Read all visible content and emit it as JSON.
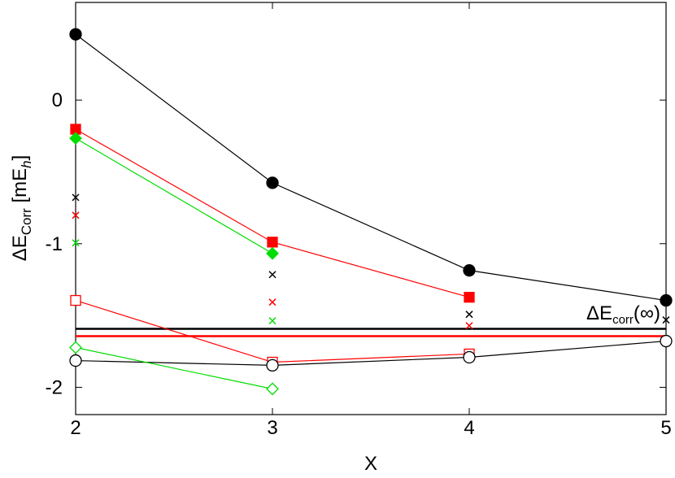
{
  "chart_data": {
    "type": "line",
    "xlabel": "X",
    "ylabel": {
      "main": "ΔE",
      "sub": "Corr",
      "rest": " [mE",
      "sub2": "h",
      "end": "]"
    },
    "annotation": {
      "main": "ΔE",
      "sub": "corr",
      "rest": "(∞)"
    },
    "xlim": [
      2,
      5
    ],
    "xticks": [
      2,
      3,
      4,
      5
    ],
    "ylim": [
      -2.19,
      0.68
    ],
    "yticks": [
      -2,
      -1,
      0
    ],
    "hlines": [
      {
        "value": -1.593,
        "color": "#000000"
      },
      {
        "value": -1.644,
        "color": "#ff0000"
      }
    ],
    "series": [
      {
        "color": "#000000",
        "marker": "circle",
        "filled": true,
        "line": true,
        "x": [
          2,
          3,
          4,
          5
        ],
        "values": [
          0.458,
          -0.576,
          -1.186,
          -1.395
        ]
      },
      {
        "color": "#ff0000",
        "marker": "square",
        "filled": true,
        "line": true,
        "x": [
          2,
          3,
          4
        ],
        "values": [
          -0.203,
          -0.989,
          -1.373
        ]
      },
      {
        "color": "#00dd00",
        "marker": "diamond",
        "filled": true,
        "line": true,
        "x": [
          2,
          3
        ],
        "values": [
          -0.266,
          -1.068
        ]
      },
      {
        "color": "#ff0000",
        "marker": "square",
        "filled": false,
        "line": true,
        "x": [
          2,
          3,
          4
        ],
        "values": [
          -1.395,
          -1.825,
          -1.768
        ]
      },
      {
        "color": "#000000",
        "marker": "circle",
        "filled": false,
        "line": true,
        "x": [
          2,
          3,
          4,
          5
        ],
        "values": [
          -1.814,
          -1.847,
          -1.791,
          -1.678
        ]
      },
      {
        "color": "#00dd00",
        "marker": "diamond",
        "filled": false,
        "line": true,
        "x": [
          2,
          3
        ],
        "values": [
          -1.723,
          -2.011
        ]
      },
      {
        "color": "#000000",
        "marker": "cross",
        "filled": false,
        "line": false,
        "x": [
          2,
          3,
          4,
          5
        ],
        "values": [
          -0.678,
          -1.215,
          -1.492,
          -1.531
        ]
      },
      {
        "color": "#ff0000",
        "marker": "cross",
        "filled": false,
        "line": false,
        "x": [
          2,
          3,
          4
        ],
        "values": [
          -0.802,
          -1.407,
          -1.571
        ]
      },
      {
        "color": "#00dd00",
        "marker": "cross",
        "filled": false,
        "line": false,
        "x": [
          2,
          3
        ],
        "values": [
          -0.994,
          -1.537
        ]
      }
    ]
  }
}
